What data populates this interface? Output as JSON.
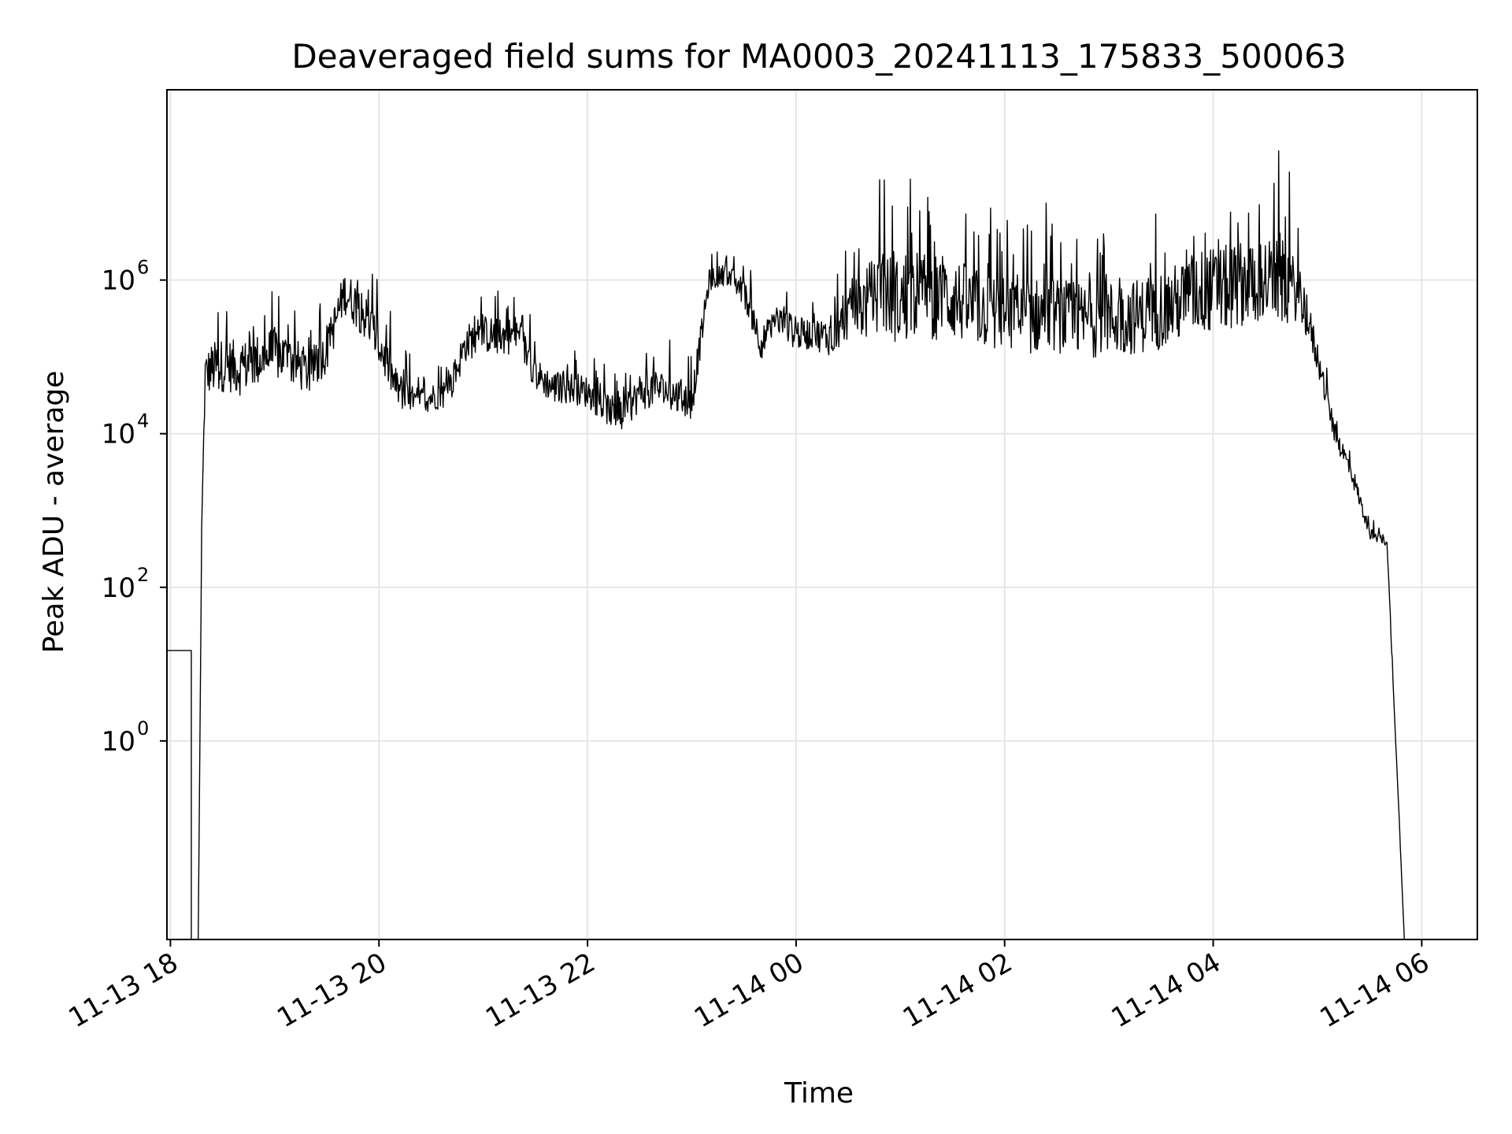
{
  "chart_data": {
    "type": "line",
    "title": "Deaveraged field sums for MA0003_20241113_175833_500063",
    "xlabel": "Time",
    "ylabel": "Peak ADU - average",
    "y_scale": "log",
    "ylim": [
      0.0026,
      300000000
    ],
    "xlim": [
      "11-13 17:58",
      "11-14 06:32"
    ],
    "grid": true,
    "line_color": "#000000",
    "grid_color": "#e6e6e6",
    "x_ticks": [
      {
        "value": "11-13 18:00",
        "label": "11-13 18"
      },
      {
        "value": "11-13 20:00",
        "label": "11-13 20"
      },
      {
        "value": "11-13 22:00",
        "label": "11-13 22"
      },
      {
        "value": "11-14 00:00",
        "label": "11-14 00"
      },
      {
        "value": "11-14 02:00",
        "label": "11-14 02"
      },
      {
        "value": "11-14 04:00",
        "label": "11-14 04"
      },
      {
        "value": "11-14 06:00",
        "label": "11-14 06"
      }
    ],
    "y_ticks": [
      {
        "value": 1,
        "base": "10",
        "exp": "0"
      },
      {
        "value": 100,
        "base": "10",
        "exp": "2"
      },
      {
        "value": 10000,
        "base": "10",
        "exp": "4"
      },
      {
        "value": 1000000,
        "base": "10",
        "exp": "6"
      }
    ],
    "series": [
      {
        "x": [
          "11-13 17:58",
          "11-13 18:12",
          "11-13 18:12",
          "11-13 18:16",
          "11-13 18:18",
          "11-13 18:20",
          "11-13 18:24",
          "11-13 18:32",
          "11-13 18:40",
          "11-13 18:50",
          "11-13 19:00",
          "11-13 19:10",
          "11-13 19:20",
          "11-13 19:30",
          "11-13 19:40",
          "11-13 19:50",
          "11-13 20:00",
          "11-13 20:10",
          "11-13 20:20",
          "11-13 20:30",
          "11-13 20:40",
          "11-13 20:50",
          "11-13 21:00",
          "11-13 21:10",
          "11-13 21:20",
          "11-13 21:30",
          "11-13 21:40",
          "11-13 21:50",
          "11-13 22:00",
          "11-13 22:10",
          "11-13 22:20",
          "11-13 22:30",
          "11-13 22:40",
          "11-13 22:50",
          "11-13 23:00",
          "11-13 23:10",
          "11-13 23:20",
          "11-13 23:30",
          "11-13 23:40",
          "11-13 23:50",
          "11-14 00:00",
          "11-14 00:10",
          "11-14 00:20",
          "11-14 00:30",
          "11-14 00:40",
          "11-14 00:50",
          "11-14 01:00",
          "11-14 01:10",
          "11-14 01:20",
          "11-14 01:30",
          "11-14 01:40",
          "11-14 01:50",
          "11-14 02:00",
          "11-14 02:10",
          "11-14 02:20",
          "11-14 02:30",
          "11-14 02:40",
          "11-14 02:50",
          "11-14 03:00",
          "11-14 03:10",
          "11-14 03:20",
          "11-14 03:30",
          "11-14 03:40",
          "11-14 03:50",
          "11-14 04:00",
          "11-14 04:10",
          "11-14 04:20",
          "11-14 04:30",
          "11-14 04:40",
          "11-14 04:50",
          "11-14 05:00",
          "11-14 05:10",
          "11-14 05:20",
          "11-14 05:30",
          "11-14 05:40",
          "11-14 05:50",
          "11-14 06:00",
          "11-14 06:05",
          "11-14 06:10",
          "11-14 06:12",
          "11-14 06:14",
          "11-14 06:16",
          "11-14 06:17"
        ],
        "y": [
          15,
          15,
          0.0026,
          0.0026,
          600,
          60000,
          70000,
          80000,
          70000,
          90000,
          110000,
          90000,
          60000,
          120000,
          700000,
          400000,
          150000,
          40000,
          25000,
          30000,
          35000,
          150000,
          200000,
          180000,
          200000,
          60000,
          40000,
          40000,
          35000,
          22000,
          16000,
          35000,
          40000,
          32000,
          26000,
          1000000,
          1200000,
          700000,
          150000,
          300000,
          200000,
          200000,
          180000,
          350000,
          500000,
          700000,
          500000,
          700000,
          600000,
          600000,
          450000,
          400000,
          350000,
          320000,
          350000,
          350000,
          300000,
          300000,
          320000,
          320000,
          350000,
          420000,
          500000,
          700000,
          750000,
          800000,
          1000000,
          1000000,
          900000,
          700000,
          100000,
          10000,
          3000,
          500,
          400,
          0.0026,
          0.0026,
          0.0026,
          0.0026,
          0.0026,
          0.0026,
          0.0026,
          0.0026
        ],
        "noise_amplitude_decades": [
          0,
          0,
          0,
          0,
          0,
          0.4,
          0.5,
          0.5,
          0.5,
          0.5,
          0.5,
          0.5,
          0.4,
          0.4,
          0.4,
          0.45,
          0.45,
          0.35,
          0.3,
          0.25,
          0.3,
          0.35,
          0.35,
          0.35,
          0.35,
          0.3,
          0.3,
          0.3,
          0.3,
          0.3,
          0.3,
          0.35,
          0.35,
          0.35,
          0.35,
          0.2,
          0.2,
          0.25,
          0.3,
          0.3,
          0.3,
          0.3,
          0.35,
          0.45,
          0.7,
          0.8,
          0.8,
          0.8,
          0.8,
          0.8,
          0.75,
          0.7,
          0.7,
          0.7,
          0.7,
          0.7,
          0.7,
          0.7,
          0.7,
          0.7,
          0.7,
          0.75,
          0.75,
          0.8,
          0.8,
          0.8,
          0.8,
          0.8,
          0.8,
          0.5,
          0.3,
          0.2,
          0.2,
          0.1,
          0.1,
          0,
          0,
          0,
          0,
          0,
          0,
          0,
          0
        ]
      }
    ]
  }
}
